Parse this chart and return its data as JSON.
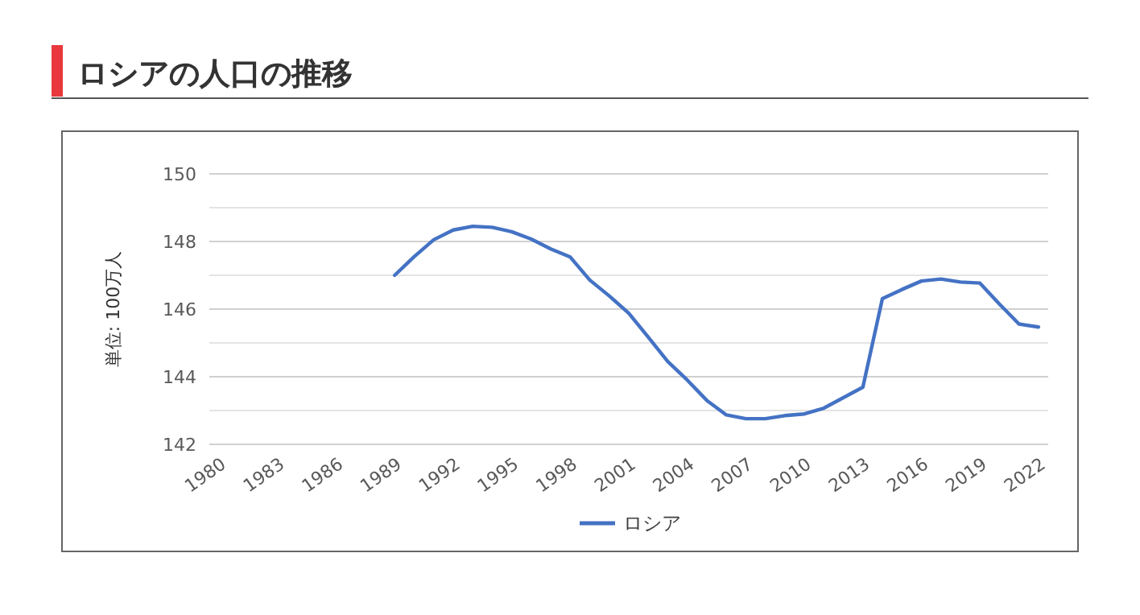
{
  "chart_data": {
    "type": "line",
    "title": "ロシアの人口の推移",
    "ylabel": "単位: 100万人",
    "x": [
      1989,
      1990,
      1991,
      1992,
      1993,
      1994,
      1995,
      1996,
      1997,
      1998,
      1999,
      2000,
      2001,
      2002,
      2003,
      2004,
      2005,
      2006,
      2007,
      2008,
      2009,
      2010,
      2011,
      2012,
      2013,
      2014,
      2015,
      2016,
      2017,
      2018,
      2019,
      2020,
      2021,
      2022
    ],
    "series": [
      {
        "name": "ロシア",
        "color": "#4472c4",
        "values": [
          147.0,
          147.55,
          148.05,
          148.34,
          148.45,
          148.42,
          148.29,
          148.07,
          147.78,
          147.54,
          146.86,
          146.39,
          145.88,
          145.17,
          144.45,
          143.9,
          143.3,
          142.87,
          142.76,
          142.76,
          142.85,
          142.9,
          143.07,
          143.38,
          143.69,
          146.31,
          146.58,
          146.83,
          146.89,
          146.8,
          146.77,
          146.15,
          145.56,
          145.47
        ]
      }
    ],
    "xlim": [
      1979.5,
      2022.5
    ],
    "xticks": [
      1980,
      1983,
      1986,
      1989,
      1992,
      1995,
      1998,
      2001,
      2004,
      2007,
      2010,
      2013,
      2016,
      2019,
      2022
    ],
    "ylim": [
      142,
      150
    ],
    "yticks": [
      142,
      {
        "value": 143,
        "label": null
      },
      144,
      {
        "value": 145,
        "label": null
      },
      146,
      {
        "value": 147,
        "label": null
      },
      148,
      {
        "value": 149,
        "label": null
      },
      150
    ],
    "grid": "y",
    "legend": "bottom",
    "marker": "none",
    "line_style": "solid"
  }
}
